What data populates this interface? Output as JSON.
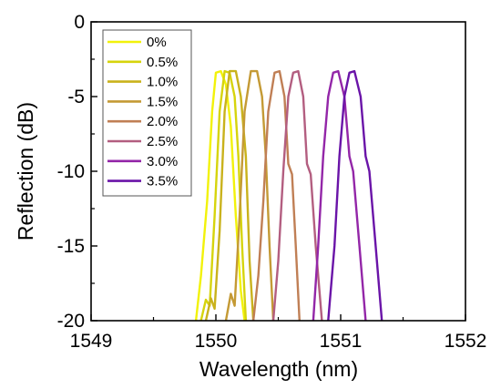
{
  "chart_data": {
    "type": "line",
    "title": "",
    "xlabel": "Wavelength (nm)",
    "ylabel": "Reflection (dB)",
    "xlim": [
      1549,
      1552
    ],
    "ylim": [
      -20,
      0
    ],
    "x_ticks": [
      1549,
      1550,
      1551,
      1552
    ],
    "y_ticks": [
      0,
      -5,
      -10,
      -15,
      -20
    ],
    "x_tick_labels": [
      "1549",
      "1550",
      "1551",
      "1552"
    ],
    "y_tick_labels": [
      "0",
      "-5",
      "-10",
      "-15",
      "-20"
    ],
    "legend_position": "top-left",
    "grid": false,
    "series": [
      {
        "name": "0%",
        "color": "#f2f20a",
        "points": [
          [
            1549.84,
            -20
          ],
          [
            1549.88,
            -17
          ],
          [
            1549.93,
            -12
          ],
          [
            1549.97,
            -6
          ],
          [
            1550.0,
            -3.4
          ],
          [
            1550.04,
            -3.3
          ],
          [
            1550.08,
            -4.2
          ],
          [
            1550.12,
            -7
          ],
          [
            1550.16,
            -13
          ],
          [
            1550.2,
            -18
          ],
          [
            1550.23,
            -20
          ]
        ]
      },
      {
        "name": "0.5%",
        "color": "#d6d40c",
        "points": [
          [
            1549.88,
            -20
          ],
          [
            1549.92,
            -18.6
          ],
          [
            1549.95,
            -19
          ],
          [
            1549.99,
            -13
          ],
          [
            1550.03,
            -6
          ],
          [
            1550.07,
            -3.3
          ],
          [
            1550.11,
            -3.4
          ],
          [
            1550.15,
            -5
          ],
          [
            1550.18,
            -9
          ],
          [
            1550.21,
            -15
          ],
          [
            1550.24,
            -20
          ]
        ]
      },
      {
        "name": "1.0%",
        "color": "#c9b21c",
        "points": [
          [
            1549.92,
            -20
          ],
          [
            1549.96,
            -18.5
          ],
          [
            1549.99,
            -19.2
          ],
          [
            1550.03,
            -14
          ],
          [
            1550.07,
            -6
          ],
          [
            1550.11,
            -3.3
          ],
          [
            1550.16,
            -3.3
          ],
          [
            1550.2,
            -5
          ],
          [
            1550.24,
            -9
          ],
          [
            1550.27,
            -16
          ],
          [
            1550.3,
            -20
          ]
        ]
      },
      {
        "name": "1.5%",
        "color": "#c49a35",
        "points": [
          [
            1550.08,
            -20
          ],
          [
            1550.12,
            -18.2
          ],
          [
            1550.15,
            -19
          ],
          [
            1550.19,
            -13
          ],
          [
            1550.23,
            -6
          ],
          [
            1550.28,
            -3.3
          ],
          [
            1550.33,
            -3.3
          ],
          [
            1550.37,
            -5
          ],
          [
            1550.4,
            -9
          ],
          [
            1550.43,
            -15
          ],
          [
            1550.46,
            -20
          ]
        ]
      },
      {
        "name": "2.0%",
        "color": "#c07f55",
        "points": [
          [
            1550.3,
            -20
          ],
          [
            1550.34,
            -17
          ],
          [
            1550.38,
            -12
          ],
          [
            1550.42,
            -6
          ],
          [
            1550.47,
            -3.4
          ],
          [
            1550.51,
            -3.3
          ],
          [
            1550.55,
            -5
          ],
          [
            1550.58,
            -9.5
          ],
          [
            1550.61,
            -10.2
          ],
          [
            1550.64,
            -15
          ],
          [
            1550.67,
            -20
          ]
        ]
      },
      {
        "name": "2.5%",
        "color": "#b35e80",
        "points": [
          [
            1550.46,
            -20
          ],
          [
            1550.5,
            -16
          ],
          [
            1550.54,
            -10
          ],
          [
            1550.58,
            -5
          ],
          [
            1550.62,
            -3.4
          ],
          [
            1550.66,
            -3.3
          ],
          [
            1550.7,
            -5
          ],
          [
            1550.73,
            -9.5
          ],
          [
            1550.76,
            -10.2
          ],
          [
            1550.8,
            -15
          ],
          [
            1550.85,
            -20
          ]
        ]
      },
      {
        "name": "3.0%",
        "color": "#9326a8",
        "points": [
          [
            1550.78,
            -20
          ],
          [
            1550.82,
            -15
          ],
          [
            1550.86,
            -9
          ],
          [
            1550.9,
            -5
          ],
          [
            1550.94,
            -3.4
          ],
          [
            1550.98,
            -3.3
          ],
          [
            1551.03,
            -5
          ],
          [
            1551.07,
            -9
          ],
          [
            1551.1,
            -10
          ],
          [
            1551.15,
            -15
          ],
          [
            1551.2,
            -20
          ]
        ]
      },
      {
        "name": "3.5%",
        "color": "#6a14a8",
        "points": [
          [
            1550.9,
            -20
          ],
          [
            1550.95,
            -15
          ],
          [
            1550.99,
            -9
          ],
          [
            1551.03,
            -5
          ],
          [
            1551.07,
            -3.4
          ],
          [
            1551.11,
            -3.3
          ],
          [
            1551.16,
            -5
          ],
          [
            1551.2,
            -9
          ],
          [
            1551.23,
            -10
          ],
          [
            1551.28,
            -15
          ],
          [
            1551.33,
            -20
          ]
        ]
      }
    ]
  }
}
